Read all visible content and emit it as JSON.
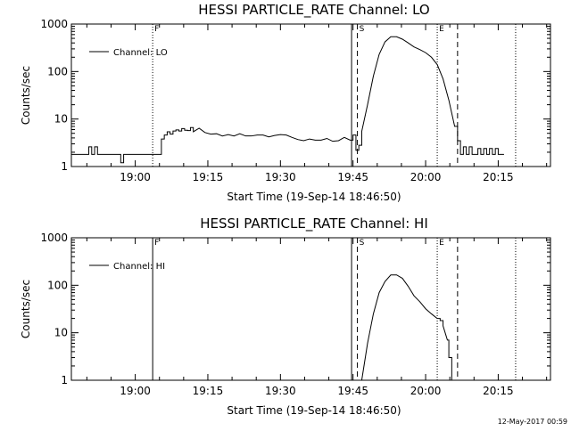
{
  "chart_data": [
    {
      "type": "line",
      "title": "HESSI PARTICLE_RATE Channel: LO",
      "xlabel": "Start Time (19-Sep-14 18:46:50)",
      "ylabel": "Counts/sec",
      "xlim": [
        18.78,
        20.43
      ],
      "ylim": [
        1,
        1000
      ],
      "y_scale": "log",
      "x_ticks": [
        19.0,
        19.25,
        19.5,
        19.75,
        20.0,
        20.25
      ],
      "x_tick_labels": [
        "19:00",
        "19:15",
        "19:30",
        "19:45",
        "20:00",
        "20:15"
      ],
      "y_ticks": [
        1,
        10,
        100,
        1000
      ],
      "y_tick_labels": [
        "1",
        "10",
        "100",
        "1000"
      ],
      "legend": "top-left",
      "series": [
        {
          "name": "Channel: LO",
          "x": [
            18.78,
            18.83,
            18.84,
            18.85,
            18.86,
            18.87,
            18.88,
            18.9,
            18.94,
            18.95,
            18.96,
            18.97,
            18.98,
            18.99,
            19.06,
            19.085,
            19.09,
            19.1,
            19.11,
            19.12,
            19.13,
            19.14,
            19.15,
            19.16,
            19.17,
            19.18,
            19.19,
            19.2,
            19.22,
            19.24,
            19.26,
            19.28,
            19.3,
            19.32,
            19.34,
            19.36,
            19.38,
            19.4,
            19.42,
            19.44,
            19.46,
            19.48,
            19.5,
            19.52,
            19.54,
            19.56,
            19.58,
            19.6,
            19.62,
            19.64,
            19.66,
            19.68,
            19.7,
            19.72,
            19.74,
            19.75,
            19.76,
            19.77,
            19.78,
            19.8,
            19.82,
            19.84,
            19.86,
            19.88,
            19.9,
            19.92,
            19.94,
            19.96,
            19.98,
            20.0,
            20.02,
            20.04,
            20.06,
            20.08,
            20.1,
            20.11,
            20.12,
            20.13,
            20.14,
            20.15,
            20.16,
            20.17,
            20.18,
            20.19,
            20.2,
            20.21,
            20.22,
            20.23,
            20.24,
            20.25,
            20.26,
            20.27
          ],
          "values": [
            1.8,
            1.8,
            2.6,
            1.8,
            2.6,
            1.8,
            1.8,
            1.8,
            1.8,
            1.2,
            1.8,
            1.8,
            1.8,
            1.8,
            1.8,
            1.8,
            3.8,
            4.6,
            5.4,
            4.8,
            5.6,
            5.9,
            5.6,
            6.3,
            5.8,
            5.7,
            6.6,
            5.4,
            6.4,
            5.2,
            4.8,
            4.9,
            4.4,
            4.7,
            4.4,
            4.9,
            4.4,
            4.4,
            4.6,
            4.6,
            4.2,
            4.5,
            4.7,
            4.6,
            4.1,
            3.7,
            3.5,
            3.8,
            3.6,
            3.6,
            3.9,
            3.4,
            3.5,
            4.1,
            3.6,
            4.6,
            2.2,
            2.8,
            5.5,
            20,
            80,
            230,
            420,
            540,
            540,
            480,
            400,
            330,
            290,
            250,
            200,
            140,
            70,
            25,
            7,
            3.5,
            1.8,
            2.6,
            1.8,
            2.6,
            1.8,
            1.8,
            2.4,
            1.8,
            2.4,
            1.8,
            2.4,
            1.8,
            2.4,
            1.8,
            1.8,
            1.8
          ],
          "color": "#000000"
        }
      ],
      "annotations": [
        {
          "label": "F",
          "x": 19.06,
          "style": "dotted"
        },
        {
          "label": "",
          "x": 19.745,
          "style": "solid"
        },
        {
          "label": "S",
          "x": 19.765,
          "style": "dashed"
        },
        {
          "label": "E",
          "x": 20.04,
          "style": "dotted"
        },
        {
          "label": "",
          "x": 20.11,
          "style": "dashed"
        },
        {
          "label": "",
          "x": 20.31,
          "style": "dotted"
        }
      ]
    },
    {
      "type": "line",
      "title": "HESSI PARTICLE_RATE Channel: HI",
      "xlabel": "Start Time (19-Sep-14 18:46:50)",
      "ylabel": "Counts/sec",
      "xlim": [
        18.78,
        20.43
      ],
      "ylim": [
        1,
        1000
      ],
      "y_scale": "log",
      "x_ticks": [
        19.0,
        19.25,
        19.5,
        19.75,
        20.0,
        20.25
      ],
      "x_tick_labels": [
        "19:00",
        "19:15",
        "19:30",
        "19:45",
        "20:00",
        "20:15"
      ],
      "y_ticks": [
        1,
        10,
        100,
        1000
      ],
      "y_tick_labels": [
        "1",
        "10",
        "100",
        "1000"
      ],
      "legend": "top-left",
      "series": [
        {
          "name": "Channel: HI",
          "x": [
            19.78,
            19.8,
            19.82,
            19.84,
            19.86,
            19.88,
            19.9,
            19.92,
            19.94,
            19.96,
            19.98,
            20.0,
            20.02,
            20.04,
            20.05,
            20.06,
            20.075,
            20.08,
            20.09
          ],
          "values": [
            1.0,
            6,
            25,
            70,
            120,
            165,
            165,
            140,
            95,
            60,
            45,
            32,
            25,
            20,
            18,
            14,
            7,
            3,
            1.0
          ],
          "color": "#000000"
        }
      ],
      "annotations": [
        {
          "label": "F",
          "x": 19.06,
          "style": "solid"
        },
        {
          "label": "",
          "x": 19.745,
          "style": "solid"
        },
        {
          "label": "S",
          "x": 19.765,
          "style": "dashed"
        },
        {
          "label": "E",
          "x": 20.04,
          "style": "dotted"
        },
        {
          "label": "",
          "x": 20.11,
          "style": "dashed"
        },
        {
          "label": "",
          "x": 20.31,
          "style": "dotted"
        }
      ]
    }
  ],
  "footer": {
    "stamp": "12-May-2017 00:59"
  }
}
